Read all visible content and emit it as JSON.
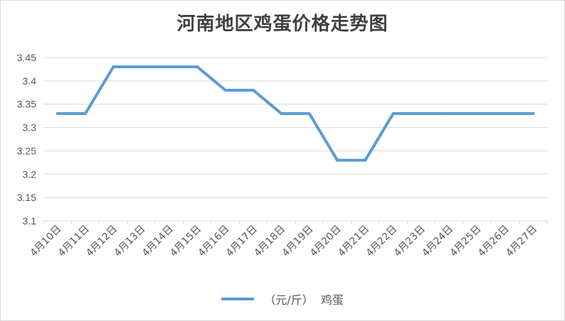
{
  "chart_data": {
    "type": "line",
    "title": "河南地区鸡蛋价格走势图",
    "categories": [
      "4月10日",
      "4月11日",
      "4月12日",
      "4月13日",
      "4月14日",
      "4月15日",
      "4月16日",
      "4月17日",
      "4月18日",
      "4月19日",
      "4月20日",
      "4月21日",
      "4月22日",
      "4月23日",
      "4月24日",
      "4月25日",
      "4月26日",
      "4月27日"
    ],
    "series": [
      {
        "unit": "（元/斤）",
        "name": "鸡蛋",
        "color": "#5b9bd5",
        "values": [
          3.33,
          3.33,
          3.43,
          3.43,
          3.43,
          3.43,
          3.38,
          3.38,
          3.33,
          3.33,
          3.23,
          3.23,
          3.33,
          3.33,
          3.33,
          3.33,
          3.33,
          3.33
        ]
      }
    ],
    "yticks": [
      "3.1",
      "3.15",
      "3.2",
      "3.25",
      "3.3",
      "3.35",
      "3.4",
      "3.45"
    ],
    "ylim": [
      3.1,
      3.45
    ],
    "grid": true,
    "legend_position": "bottom",
    "xlabel": "",
    "ylabel": ""
  }
}
